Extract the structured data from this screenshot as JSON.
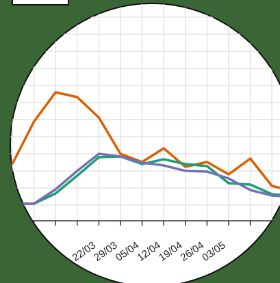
{
  "chart_data": {
    "type": "line",
    "categories": [
      null,
      null,
      null,
      "22/03",
      "29/03",
      "05/04",
      "12/04",
      "19/04",
      "26/04",
      "03/05",
      null,
      null,
      null,
      null
    ],
    "series": [
      {
        "color": "#d95f02",
        "values": [
          90,
          152,
          195,
          188,
          158,
          105,
          93,
          113,
          86,
          93,
          75,
          98,
          58,
          50
        ]
      },
      {
        "color": "#1b9e77",
        "values": [
          32,
          32,
          47,
          73,
          100,
          101,
          90,
          97,
          90,
          87,
          62,
          60,
          46,
          43
        ]
      },
      {
        "color": "#7570b3",
        "values": [
          32,
          32,
          53,
          80,
          105,
          101,
          92,
          88,
          80,
          79,
          69,
          52,
          44,
          42
        ]
      }
    ],
    "ylim": [
      0,
      330
    ],
    "yticks": [
      30,
      55,
      80,
      105,
      130,
      155,
      180,
      205,
      230,
      255,
      280,
      305
    ],
    "grid": true
  }
}
